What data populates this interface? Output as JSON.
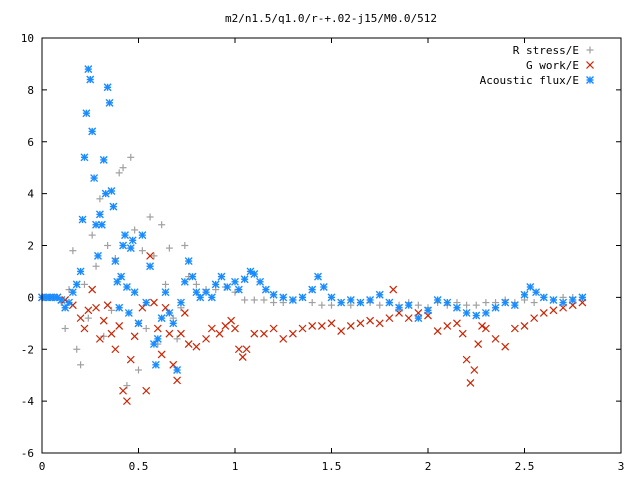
{
  "chart_data": {
    "type": "scatter",
    "title": "m2/n1.5/q1.0/r-+.02-j15/M0.0/512",
    "xlim": [
      0,
      3
    ],
    "ylim": [
      -6,
      10
    ],
    "xticks": [
      "0",
      "0.5",
      "1",
      "1.5",
      "2",
      "2.5",
      "3"
    ],
    "yticks": [
      "-6",
      "-4",
      "-2",
      "0",
      "2",
      "4",
      "6",
      "8",
      "10"
    ],
    "legend_position": "top-right",
    "series": [
      {
        "name": "R stress/E",
        "marker": "plus",
        "color": "#a0a0a0",
        "points": [
          [
            0.0,
            0
          ],
          [
            0.04,
            0
          ],
          [
            0.08,
            0
          ],
          [
            0.1,
            -0.2
          ],
          [
            0.12,
            -1.2
          ],
          [
            0.14,
            0.3
          ],
          [
            0.16,
            1.8
          ],
          [
            0.18,
            -2.0
          ],
          [
            0.2,
            -2.6
          ],
          [
            0.22,
            0.5
          ],
          [
            0.24,
            -0.8
          ],
          [
            0.26,
            2.4
          ],
          [
            0.28,
            1.2
          ],
          [
            0.3,
            3.8
          ],
          [
            0.32,
            -1.5
          ],
          [
            0.34,
            2.0
          ],
          [
            0.36,
            -0.5
          ],
          [
            0.38,
            1.5
          ],
          [
            0.4,
            4.8
          ],
          [
            0.42,
            5.0
          ],
          [
            0.44,
            -3.4
          ],
          [
            0.46,
            5.4
          ],
          [
            0.48,
            2.6
          ],
          [
            0.5,
            -2.8
          ],
          [
            0.52,
            1.8
          ],
          [
            0.54,
            -1.2
          ],
          [
            0.56,
            3.1
          ],
          [
            0.58,
            1.6
          ],
          [
            0.6,
            -1.8
          ],
          [
            0.62,
            2.8
          ],
          [
            0.64,
            0.5
          ],
          [
            0.66,
            1.9
          ],
          [
            0.68,
            -0.8
          ],
          [
            0.7,
            -1.6
          ],
          [
            0.72,
            -0.4
          ],
          [
            0.74,
            2.0
          ],
          [
            0.76,
            0.8
          ],
          [
            0.8,
            0.5
          ],
          [
            0.85,
            0.3
          ],
          [
            0.9,
            0.3
          ],
          [
            0.95,
            0.4
          ],
          [
            1.0,
            0.2
          ],
          [
            1.05,
            -0.1
          ],
          [
            1.1,
            -0.1
          ],
          [
            1.15,
            -0.1
          ],
          [
            1.2,
            -0.2
          ],
          [
            1.25,
            -0.2
          ],
          [
            1.3,
            -0.1
          ],
          [
            1.35,
            0.0
          ],
          [
            1.4,
            -0.2
          ],
          [
            1.45,
            -0.3
          ],
          [
            1.5,
            -0.3
          ],
          [
            1.55,
            -0.2
          ],
          [
            1.6,
            -0.3
          ],
          [
            1.65,
            -0.2
          ],
          [
            1.7,
            -0.2
          ],
          [
            1.75,
            -0.3
          ],
          [
            1.8,
            -0.2
          ],
          [
            1.85,
            -0.3
          ],
          [
            1.9,
            -0.2
          ],
          [
            1.95,
            -0.3
          ],
          [
            2.0,
            -0.4
          ],
          [
            2.05,
            -0.2
          ],
          [
            2.1,
            -0.3
          ],
          [
            2.15,
            -0.2
          ],
          [
            2.2,
            -0.3
          ],
          [
            2.25,
            -0.3
          ],
          [
            2.3,
            -0.2
          ],
          [
            2.35,
            -0.2
          ],
          [
            2.4,
            -0.1
          ],
          [
            2.45,
            -0.2
          ],
          [
            2.5,
            -0.1
          ],
          [
            2.55,
            -0.2
          ],
          [
            2.6,
            0.0
          ],
          [
            2.65,
            -0.1
          ],
          [
            2.7,
            0.0
          ],
          [
            2.75,
            0.0
          ],
          [
            2.8,
            0.0
          ]
        ]
      },
      {
        "name": "G work/E",
        "marker": "cross",
        "color": "#cc2200",
        "points": [
          [
            0.0,
            0
          ],
          [
            0.04,
            0
          ],
          [
            0.08,
            0
          ],
          [
            0.12,
            -0.1
          ],
          [
            0.16,
            -0.3
          ],
          [
            0.2,
            -0.8
          ],
          [
            0.22,
            -1.2
          ],
          [
            0.24,
            -0.5
          ],
          [
            0.26,
            0.3
          ],
          [
            0.28,
            -0.4
          ],
          [
            0.3,
            -1.6
          ],
          [
            0.32,
            -0.9
          ],
          [
            0.34,
            -0.3
          ],
          [
            0.36,
            -1.4
          ],
          [
            0.38,
            -2.0
          ],
          [
            0.4,
            -1.1
          ],
          [
            0.42,
            -3.6
          ],
          [
            0.44,
            -4.0
          ],
          [
            0.46,
            -2.4
          ],
          [
            0.48,
            -1.5
          ],
          [
            0.5,
            -1.0
          ],
          [
            0.52,
            -0.4
          ],
          [
            0.54,
            -3.6
          ],
          [
            0.56,
            1.6
          ],
          [
            0.58,
            -0.2
          ],
          [
            0.6,
            -1.2
          ],
          [
            0.62,
            -2.2
          ],
          [
            0.64,
            -0.4
          ],
          [
            0.66,
            -1.4
          ],
          [
            0.68,
            -2.6
          ],
          [
            0.7,
            -3.2
          ],
          [
            0.72,
            -1.4
          ],
          [
            0.74,
            -0.6
          ],
          [
            0.76,
            -1.8
          ],
          [
            0.8,
            -1.9
          ],
          [
            0.85,
            -1.6
          ],
          [
            0.88,
            -1.2
          ],
          [
            0.92,
            -1.4
          ],
          [
            0.95,
            -1.1
          ],
          [
            0.98,
            -0.9
          ],
          [
            1.0,
            -1.2
          ],
          [
            1.02,
            -2.0
          ],
          [
            1.04,
            -2.3
          ],
          [
            1.06,
            -2.0
          ],
          [
            1.1,
            -1.4
          ],
          [
            1.15,
            -1.4
          ],
          [
            1.2,
            -1.2
          ],
          [
            1.25,
            -1.6
          ],
          [
            1.3,
            -1.4
          ],
          [
            1.35,
            -1.2
          ],
          [
            1.4,
            -1.1
          ],
          [
            1.45,
            -1.1
          ],
          [
            1.5,
            -1.0
          ],
          [
            1.55,
            -1.3
          ],
          [
            1.6,
            -1.1
          ],
          [
            1.65,
            -1.0
          ],
          [
            1.7,
            -0.9
          ],
          [
            1.75,
            -1.0
          ],
          [
            1.8,
            -0.8
          ],
          [
            1.82,
            0.3
          ],
          [
            1.85,
            -0.6
          ],
          [
            1.9,
            -0.8
          ],
          [
            1.95,
            -0.6
          ],
          [
            2.0,
            -0.7
          ],
          [
            2.05,
            -1.3
          ],
          [
            2.1,
            -1.1
          ],
          [
            2.15,
            -1.0
          ],
          [
            2.18,
            -1.4
          ],
          [
            2.2,
            -2.4
          ],
          [
            2.22,
            -3.3
          ],
          [
            2.24,
            -2.8
          ],
          [
            2.26,
            -1.8
          ],
          [
            2.28,
            -1.1
          ],
          [
            2.3,
            -1.2
          ],
          [
            2.35,
            -1.6
          ],
          [
            2.4,
            -1.9
          ],
          [
            2.45,
            -1.2
          ],
          [
            2.5,
            -1.1
          ],
          [
            2.55,
            -0.8
          ],
          [
            2.6,
            -0.6
          ],
          [
            2.65,
            -0.5
          ],
          [
            2.7,
            -0.4
          ],
          [
            2.75,
            -0.3
          ],
          [
            2.8,
            -0.2
          ]
        ]
      },
      {
        "name": "Acoustic flux/E",
        "marker": "star",
        "color": "#1a8cff",
        "points": [
          [
            0.0,
            0
          ],
          [
            0.02,
            0
          ],
          [
            0.04,
            0
          ],
          [
            0.06,
            0
          ],
          [
            0.08,
            0
          ],
          [
            0.1,
            -0.1
          ],
          [
            0.12,
            -0.4
          ],
          [
            0.14,
            -0.2
          ],
          [
            0.16,
            0.2
          ],
          [
            0.18,
            0.5
          ],
          [
            0.2,
            1.0
          ],
          [
            0.21,
            3.0
          ],
          [
            0.22,
            5.4
          ],
          [
            0.23,
            7.1
          ],
          [
            0.24,
            8.8
          ],
          [
            0.25,
            8.4
          ],
          [
            0.26,
            6.4
          ],
          [
            0.27,
            4.6
          ],
          [
            0.28,
            2.8
          ],
          [
            0.29,
            1.6
          ],
          [
            0.3,
            3.2
          ],
          [
            0.31,
            2.8
          ],
          [
            0.32,
            5.3
          ],
          [
            0.33,
            4.0
          ],
          [
            0.34,
            8.1
          ],
          [
            0.35,
            7.5
          ],
          [
            0.36,
            4.1
          ],
          [
            0.37,
            3.5
          ],
          [
            0.38,
            1.4
          ],
          [
            0.39,
            0.6
          ],
          [
            0.4,
            -0.4
          ],
          [
            0.41,
            0.8
          ],
          [
            0.42,
            2.0
          ],
          [
            0.43,
            2.4
          ],
          [
            0.44,
            0.4
          ],
          [
            0.45,
            -0.6
          ],
          [
            0.46,
            1.9
          ],
          [
            0.47,
            2.2
          ],
          [
            0.48,
            0.2
          ],
          [
            0.5,
            -1.0
          ],
          [
            0.52,
            2.4
          ],
          [
            0.54,
            -0.2
          ],
          [
            0.56,
            1.2
          ],
          [
            0.58,
            -1.8
          ],
          [
            0.59,
            -2.6
          ],
          [
            0.6,
            -1.6
          ],
          [
            0.62,
            -0.8
          ],
          [
            0.64,
            0.2
          ],
          [
            0.66,
            -0.6
          ],
          [
            0.68,
            -1.0
          ],
          [
            0.7,
            -2.8
          ],
          [
            0.72,
            -0.2
          ],
          [
            0.74,
            0.6
          ],
          [
            0.76,
            1.4
          ],
          [
            0.78,
            0.8
          ],
          [
            0.8,
            0.2
          ],
          [
            0.82,
            0.0
          ],
          [
            0.85,
            0.2
          ],
          [
            0.88,
            0.0
          ],
          [
            0.9,
            0.5
          ],
          [
            0.93,
            0.8
          ],
          [
            0.96,
            0.4
          ],
          [
            1.0,
            0.6
          ],
          [
            1.02,
            0.3
          ],
          [
            1.05,
            0.7
          ],
          [
            1.08,
            1.0
          ],
          [
            1.1,
            0.9
          ],
          [
            1.13,
            0.6
          ],
          [
            1.16,
            0.3
          ],
          [
            1.2,
            0.1
          ],
          [
            1.25,
            0.0
          ],
          [
            1.3,
            -0.1
          ],
          [
            1.35,
            0.0
          ],
          [
            1.4,
            0.3
          ],
          [
            1.43,
            0.8
          ],
          [
            1.46,
            0.4
          ],
          [
            1.5,
            0.0
          ],
          [
            1.55,
            -0.2
          ],
          [
            1.6,
            -0.1
          ],
          [
            1.65,
            -0.2
          ],
          [
            1.7,
            -0.1
          ],
          [
            1.75,
            0.1
          ],
          [
            1.8,
            -0.2
          ],
          [
            1.85,
            -0.4
          ],
          [
            1.9,
            -0.3
          ],
          [
            1.95,
            -0.8
          ],
          [
            2.0,
            -0.5
          ],
          [
            2.05,
            -0.1
          ],
          [
            2.1,
            -0.2
          ],
          [
            2.15,
            -0.4
          ],
          [
            2.2,
            -0.6
          ],
          [
            2.25,
            -0.7
          ],
          [
            2.3,
            -0.6
          ],
          [
            2.35,
            -0.4
          ],
          [
            2.4,
            -0.2
          ],
          [
            2.45,
            -0.3
          ],
          [
            2.5,
            0.1
          ],
          [
            2.53,
            0.4
          ],
          [
            2.56,
            0.2
          ],
          [
            2.6,
            0.0
          ],
          [
            2.65,
            -0.1
          ],
          [
            2.7,
            -0.2
          ],
          [
            2.75,
            -0.1
          ],
          [
            2.8,
            0.0
          ]
        ]
      }
    ]
  }
}
